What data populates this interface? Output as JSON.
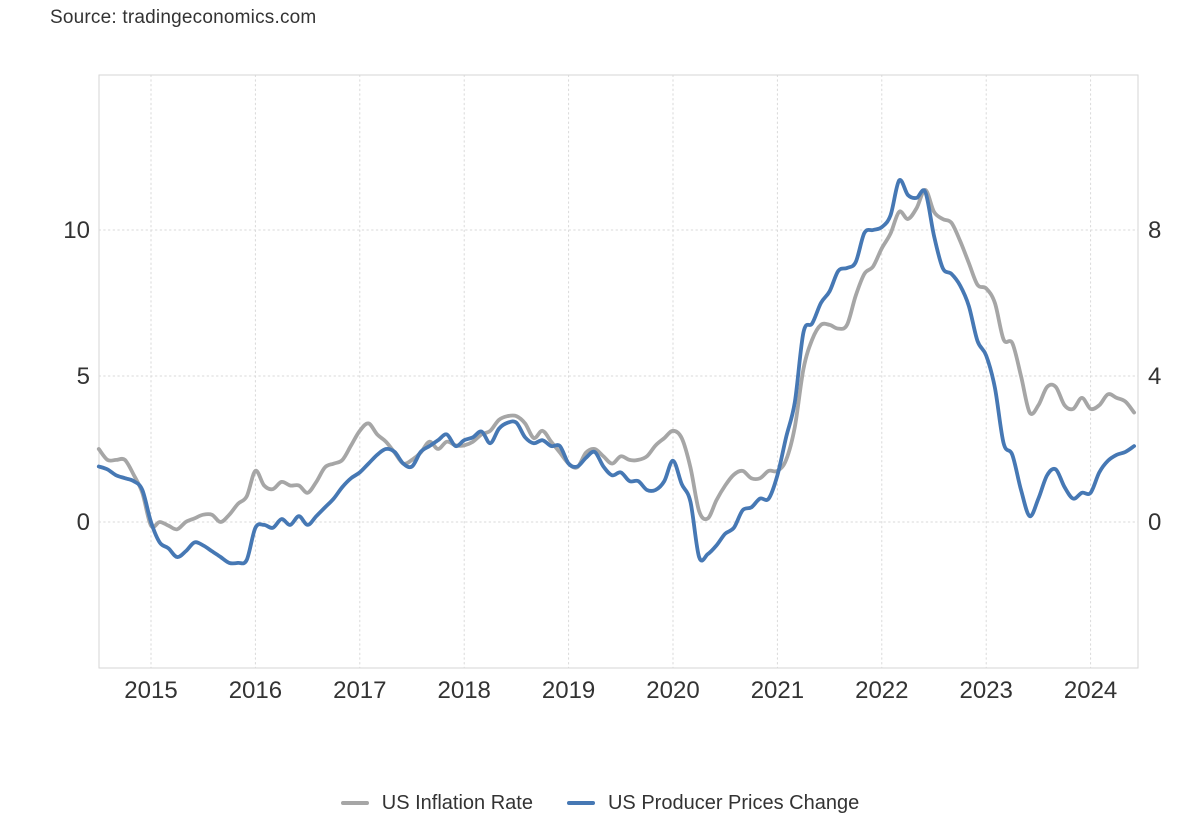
{
  "source": {
    "label": "Source: tradingeconomics.com"
  },
  "legend": {
    "items": [
      {
        "label": "US Inflation Rate",
        "color": "#a6a6a6"
      },
      {
        "label": "US Producer Prices Change",
        "color": "#4678b4"
      }
    ]
  },
  "chart_data": {
    "type": "line",
    "title": "",
    "style": "smooth spline, dual y-axis, dotted grid",
    "grid": "dotted",
    "legend_position": "bottom",
    "x_monthly_start": "2014-07",
    "x_monthly_end": "2024-06",
    "x_tick_labels": [
      "2015",
      "2016",
      "2017",
      "2018",
      "2019",
      "2020",
      "2021",
      "2022",
      "2023",
      "2024"
    ],
    "axes": {
      "left": {
        "tick_labels": [
          "10",
          "5",
          "0"
        ],
        "tick_values": [
          10,
          5,
          0
        ],
        "range": [
          -5.1,
          15.3
        ],
        "series": "US Producer Prices Change"
      },
      "right": {
        "tick_labels": [
          "8",
          "4",
          "0"
        ],
        "tick_values": [
          8,
          4,
          0
        ],
        "range": [
          -4.05,
          12.25
        ],
        "series": "US Inflation Rate"
      }
    },
    "series": [
      {
        "name": "US Inflation Rate",
        "axis": "right",
        "color": "#a6a6a6",
        "values": [
          2.0,
          1.7,
          1.7,
          1.7,
          1.3,
          0.8,
          -0.1,
          0.0,
          -0.1,
          -0.2,
          0.0,
          0.1,
          0.2,
          0.2,
          0.0,
          0.2,
          0.5,
          0.7,
          1.4,
          1.0,
          0.9,
          1.1,
          1.0,
          1.0,
          0.8,
          1.1,
          1.5,
          1.6,
          1.7,
          2.1,
          2.5,
          2.7,
          2.4,
          2.2,
          1.9,
          1.6,
          1.7,
          1.9,
          2.2,
          2.0,
          2.2,
          2.1,
          2.1,
          2.2,
          2.4,
          2.5,
          2.8,
          2.9,
          2.9,
          2.7,
          2.3,
          2.5,
          2.2,
          1.9,
          1.6,
          1.5,
          1.9,
          2.0,
          1.8,
          1.6,
          1.8,
          1.7,
          1.7,
          1.8,
          2.1,
          2.3,
          2.5,
          2.3,
          1.5,
          0.3,
          0.1,
          0.6,
          1.0,
          1.3,
          1.4,
          1.2,
          1.2,
          1.4,
          1.4,
          1.7,
          2.6,
          4.2,
          5.0,
          5.4,
          5.4,
          5.3,
          5.4,
          6.2,
          6.8,
          7.0,
          7.5,
          7.9,
          8.5,
          8.3,
          8.6,
          9.1,
          8.5,
          8.3,
          8.2,
          7.7,
          7.1,
          6.5,
          6.4,
          6.0,
          5.0,
          4.9,
          4.0,
          3.0,
          3.2,
          3.7,
          3.7,
          3.2,
          3.1,
          3.4,
          3.1,
          3.2,
          3.5,
          3.4,
          3.3,
          3.0
        ]
      },
      {
        "name": "US Producer Prices Change",
        "axis": "left",
        "color": "#4678b4",
        "values": [
          1.9,
          1.8,
          1.6,
          1.5,
          1.4,
          1.1,
          0.0,
          -0.7,
          -0.9,
          -1.2,
          -1.0,
          -0.7,
          -0.8,
          -1.0,
          -1.2,
          -1.4,
          -1.4,
          -1.3,
          -0.2,
          -0.1,
          -0.2,
          0.1,
          -0.1,
          0.2,
          -0.1,
          0.2,
          0.5,
          0.8,
          1.2,
          1.5,
          1.7,
          2.0,
          2.3,
          2.5,
          2.4,
          2.0,
          1.9,
          2.4,
          2.6,
          2.8,
          3.0,
          2.6,
          2.8,
          2.9,
          3.1,
          2.7,
          3.2,
          3.4,
          3.4,
          2.9,
          2.7,
          2.8,
          2.6,
          2.6,
          2.0,
          1.9,
          2.2,
          2.4,
          1.9,
          1.6,
          1.7,
          1.4,
          1.4,
          1.1,
          1.1,
          1.4,
          2.1,
          1.3,
          0.7,
          -1.2,
          -1.1,
          -0.8,
          -0.4,
          -0.2,
          0.4,
          0.5,
          0.8,
          0.8,
          1.6,
          2.9,
          4.1,
          6.5,
          6.8,
          7.5,
          7.9,
          8.6,
          8.7,
          8.9,
          9.9,
          10.0,
          10.1,
          10.5,
          11.7,
          11.2,
          11.1,
          11.3,
          9.8,
          8.7,
          8.5,
          8.1,
          7.4,
          6.2,
          5.7,
          4.6,
          2.7,
          2.3,
          1.1,
          0.2,
          0.8,
          1.6,
          1.8,
          1.2,
          0.8,
          1.0,
          1.0,
          1.7,
          2.1,
          2.3,
          2.4,
          2.6
        ]
      }
    ]
  }
}
